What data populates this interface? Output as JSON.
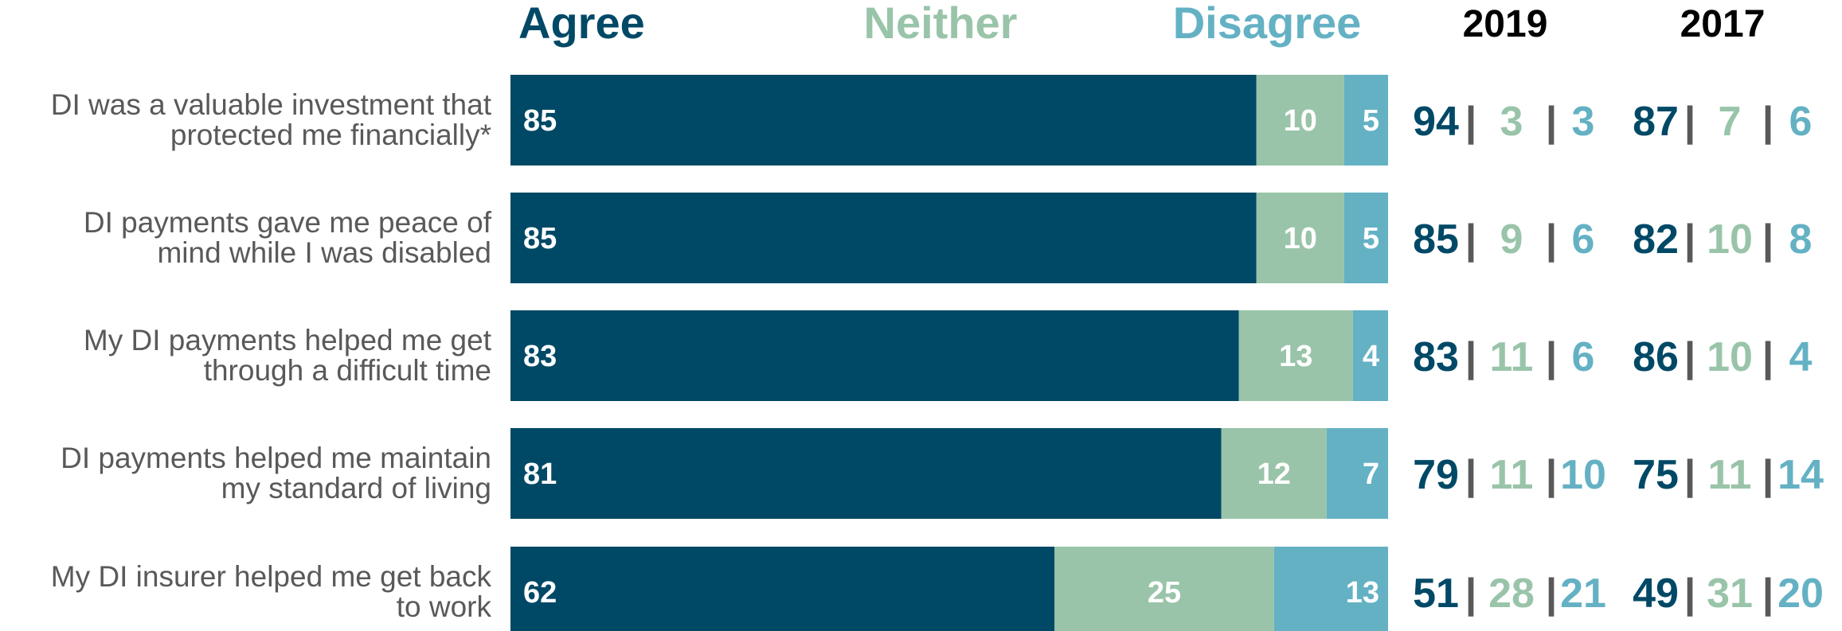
{
  "colors": {
    "agree": "#004966",
    "neither": "#99c4a9",
    "disagree": "#64b1c4",
    "separator": "#595959",
    "label": "#595959",
    "year_header": "#000000"
  },
  "chart_data": {
    "type": "bar",
    "orientation": "horizontal",
    "stacked": true,
    "categories": [
      [
        "DI was a valuable investment that",
        "protected me financially*"
      ],
      [
        "DI payments gave me peace of",
        "mind while I was disabled"
      ],
      [
        "My DI payments helped me get",
        "through a difficult time"
      ],
      [
        "DI payments helped me maintain",
        "my standard of living"
      ],
      [
        "My DI insurer helped me get back",
        "to work"
      ]
    ],
    "series": [
      {
        "name": "Agree",
        "values": [
          85,
          85,
          83,
          81,
          62
        ]
      },
      {
        "name": "Neither",
        "values": [
          10,
          10,
          13,
          12,
          25
        ]
      },
      {
        "name": "Disagree",
        "values": [
          5,
          5,
          4,
          7,
          13
        ]
      }
    ],
    "xlim": [
      0,
      100
    ],
    "grid": false,
    "legend": "top",
    "comparison": {
      "years": [
        "2019",
        "2017"
      ],
      "separator": "|",
      "values": {
        "2019": [
          [
            94,
            3,
            3
          ],
          [
            85,
            9,
            6
          ],
          [
            83,
            11,
            6
          ],
          [
            79,
            11,
            10
          ],
          [
            51,
            28,
            21
          ]
        ],
        "2017": [
          [
            87,
            7,
            6
          ],
          [
            82,
            10,
            8
          ],
          [
            86,
            10,
            4
          ],
          [
            75,
            11,
            14
          ],
          [
            49,
            31,
            20
          ]
        ]
      }
    }
  }
}
